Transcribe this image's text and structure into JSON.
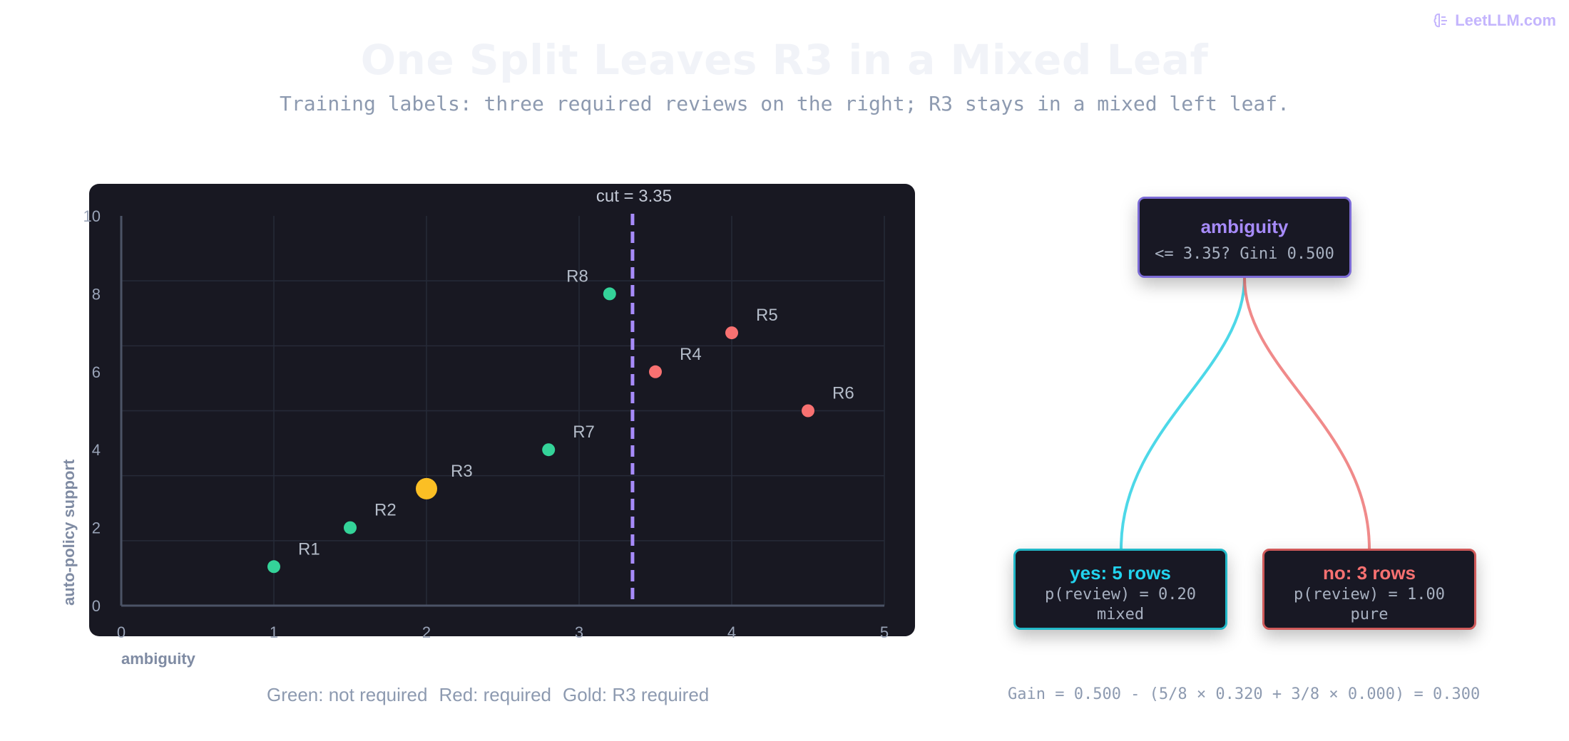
{
  "brand": {
    "icon": "brain-icon",
    "text": "LeetLLM.com"
  },
  "title": "One Split Leaves R3 in a Mixed Leaf",
  "subtitle": "Training labels: three required reviews on the right; R3 stays in a mixed left leaf.",
  "chart_data": {
    "type": "scatter",
    "xlabel": "ambiguity",
    "ylabel": "auto-policy support",
    "xlim": [
      0,
      5
    ],
    "ylim": [
      0,
      10
    ],
    "xticks": [
      0,
      1,
      2,
      3,
      4,
      5
    ],
    "yticks": [
      0,
      2,
      4,
      6,
      8,
      10
    ],
    "ytick_labels": [
      "0",
      "2",
      "4",
      "6",
      "8",
      "10"
    ],
    "grid": true,
    "cut": {
      "x": 3.35,
      "label": "cut = 3.35",
      "color": "#a78bfa"
    },
    "colors": {
      "not_required": "#34d399",
      "required": "#f87171",
      "highlight": "#fbbf24"
    },
    "points": [
      {
        "label": "R1",
        "x": 1.0,
        "y": 1.0,
        "class": "not_required"
      },
      {
        "label": "R2",
        "x": 1.5,
        "y": 2.0,
        "class": "not_required"
      },
      {
        "label": "R3",
        "x": 2.0,
        "y": 3.0,
        "class": "highlight"
      },
      {
        "label": "R7",
        "x": 2.8,
        "y": 4.0,
        "class": "not_required"
      },
      {
        "label": "R8",
        "x": 3.2,
        "y": 8.0,
        "class": "not_required"
      },
      {
        "label": "R4",
        "x": 3.5,
        "y": 6.0,
        "class": "required"
      },
      {
        "label": "R5",
        "x": 4.0,
        "y": 7.0,
        "class": "required"
      },
      {
        "label": "R6",
        "x": 4.5,
        "y": 5.0,
        "class": "required"
      }
    ]
  },
  "legend": {
    "green": "Green: not required",
    "red": "Red: required",
    "gold": "Gold: R3 required"
  },
  "tree": {
    "root": {
      "title": "ambiguity",
      "detail": "<= 3.35? Gini 0.500"
    },
    "yes": {
      "title": "yes: 5 rows",
      "prob": "p(review) = 0.20",
      "purity": "mixed"
    },
    "no": {
      "title": "no: 3 rows",
      "prob": "p(review) = 1.00",
      "purity": "pure"
    },
    "edge_colors": {
      "yes": "#4dd8e8",
      "no": "#f08a8a"
    }
  },
  "gain": "Gain = 0.500 - (5/8 × 0.320 + 3/8 × 0.000) = 0.300"
}
